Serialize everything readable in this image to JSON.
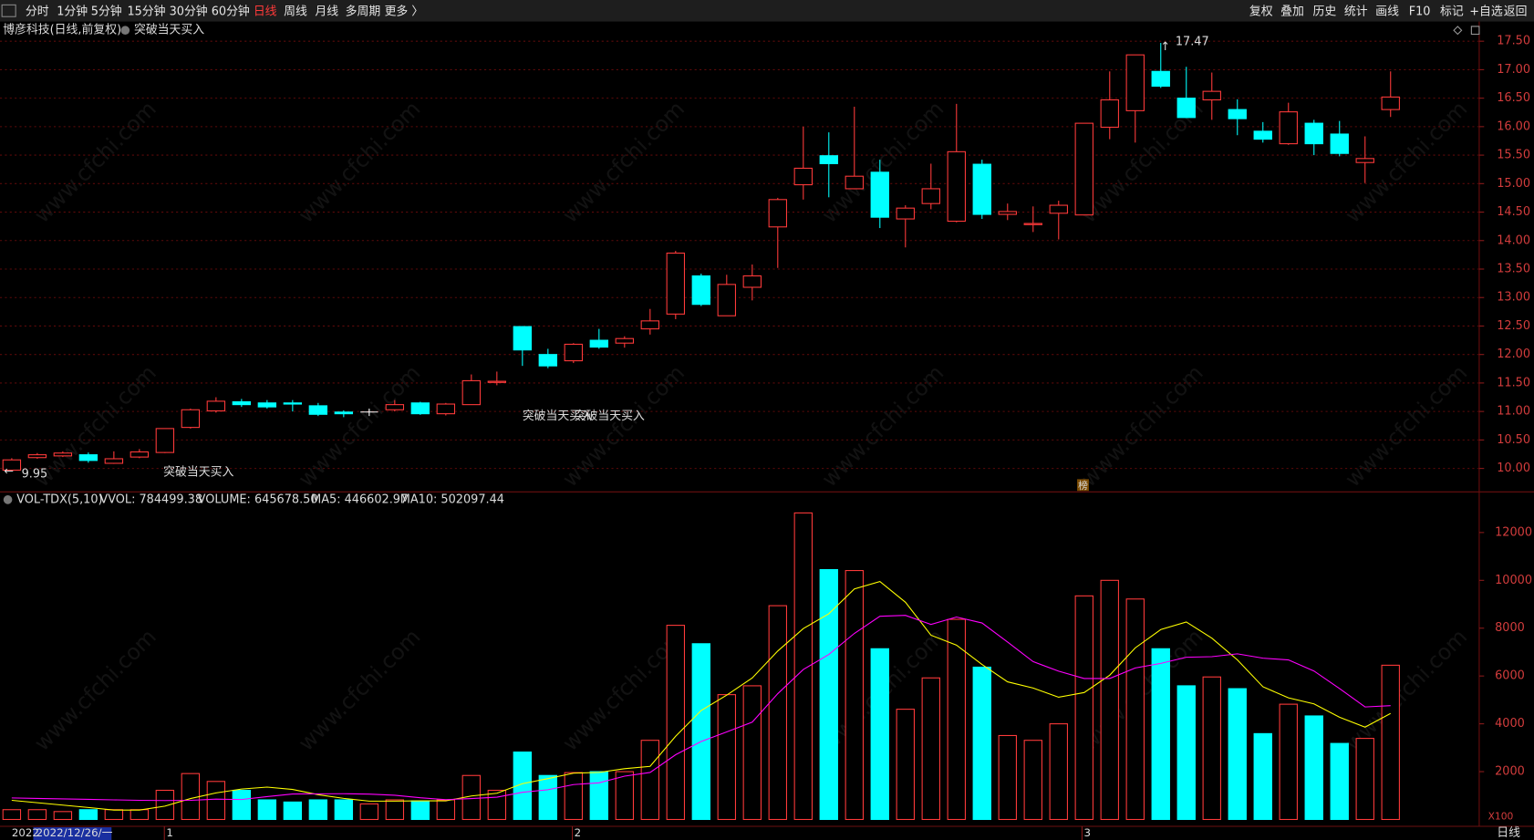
{
  "toolbar": {
    "left": [
      "分时",
      "1分钟",
      "5分钟",
      "15分钟",
      "30分钟",
      "60分钟",
      "日线",
      "周线",
      "月线",
      "多周期",
      "更多 〉"
    ],
    "active": "日线",
    "right": [
      "复权",
      "叠加",
      "历史",
      "统计",
      "画线",
      "F10",
      "标记",
      "+自选",
      "返回"
    ]
  },
  "watermark": "www.cfchi.com",
  "chart_data": [
    {
      "type": "candlestick",
      "title": "博彦科技(日线,前复权)",
      "indicator": "突破当天买入",
      "open": [
        9.97,
        10.19,
        10.22,
        10.24,
        10.09,
        10.2,
        10.28,
        10.72,
        11.01,
        11.17,
        11.15,
        11.15,
        11.1,
        10.99,
        10.99,
        11.03,
        11.15,
        10.96,
        11.12,
        11.51,
        12.49,
        12.0,
        11.89,
        12.25,
        12.2,
        12.45,
        12.71,
        13.38,
        12.68,
        13.18,
        14.24,
        14.98,
        15.49,
        14.91,
        15.2,
        14.38,
        14.65,
        14.34,
        15.34,
        14.46,
        14.28,
        14.48,
        14.45,
        15.99,
        16.28,
        16.97,
        16.5,
        16.47,
        16.3,
        15.92,
        15.7,
        16.06,
        15.87,
        15.37,
        16.3
      ],
      "high": [
        10.18,
        10.27,
        10.3,
        10.28,
        10.3,
        10.34,
        10.7,
        11.05,
        11.25,
        11.22,
        11.2,
        11.2,
        11.15,
        11.02,
        11.05,
        11.2,
        11.17,
        11.15,
        11.65,
        11.7,
        12.5,
        12.1,
        12.2,
        12.45,
        12.32,
        12.8,
        13.82,
        13.42,
        13.4,
        13.58,
        14.75,
        16.0,
        15.9,
        16.35,
        15.42,
        14.62,
        15.35,
        16.4,
        15.42,
        14.65,
        14.6,
        14.7,
        16.06,
        16.97,
        17.26,
        17.47,
        17.05,
        16.95,
        16.48,
        16.08,
        16.42,
        16.12,
        16.1,
        15.83,
        16.97
      ],
      "low": [
        9.95,
        10.17,
        10.2,
        10.1,
        10.08,
        10.18,
        10.27,
        10.7,
        10.98,
        11.08,
        11.05,
        11.0,
        10.92,
        10.9,
        10.92,
        11.0,
        10.94,
        10.93,
        11.12,
        11.46,
        11.8,
        11.76,
        11.85,
        12.1,
        12.12,
        12.35,
        12.62,
        12.85,
        12.68,
        12.95,
        13.52,
        14.72,
        14.76,
        14.9,
        14.22,
        13.88,
        14.55,
        14.32,
        14.38,
        14.36,
        14.15,
        14.02,
        14.45,
        15.78,
        15.72,
        16.68,
        16.15,
        16.12,
        15.85,
        15.72,
        15.68,
        15.5,
        15.48,
        15.01,
        16.17
      ],
      "close": [
        10.15,
        10.24,
        10.27,
        10.14,
        10.17,
        10.29,
        10.7,
        11.03,
        11.18,
        11.12,
        11.08,
        11.13,
        10.95,
        10.96,
        10.99,
        11.12,
        10.96,
        11.13,
        11.54,
        11.53,
        12.08,
        11.8,
        12.18,
        12.13,
        12.28,
        12.59,
        13.78,
        12.88,
        13.23,
        13.38,
        14.72,
        15.27,
        15.35,
        15.13,
        14.41,
        14.57,
        14.91,
        15.56,
        14.46,
        14.51,
        14.3,
        14.62,
        16.06,
        16.47,
        17.26,
        16.71,
        16.16,
        16.62,
        16.14,
        15.78,
        16.26,
        15.7,
        15.53,
        15.44,
        16.52
      ],
      "up_color": "#ff3a3a",
      "down_color": "#00ffff",
      "flat_color": "#ffffff",
      "ylim": [
        9.64,
        17.88
      ],
      "yticks": [
        {
          "value": 10,
          "label": "10.00"
        },
        {
          "value": 10.5,
          "label": "10.50"
        },
        {
          "value": 11,
          "label": "11.00"
        },
        {
          "value": 11.5,
          "label": "11.50"
        },
        {
          "value": 12,
          "label": "12.00"
        },
        {
          "value": 12.5,
          "label": "12.50"
        },
        {
          "value": 13,
          "label": "13.00"
        },
        {
          "value": 13.5,
          "label": "13.50"
        },
        {
          "value": 14,
          "label": "14.00"
        },
        {
          "value": 14.5,
          "label": "14.50"
        },
        {
          "value": 15,
          "label": "15.00"
        },
        {
          "value": 15.5,
          "label": "15.50"
        },
        {
          "value": 16,
          "label": "16.00"
        },
        {
          "value": 16.5,
          "label": "16.50"
        },
        {
          "value": 17,
          "label": "17.00"
        },
        {
          "value": 17.5,
          "label": "17.50"
        }
      ],
      "grid": true,
      "annotations": [
        "突破当天买入",
        "突破当天买入",
        "突破当天买入"
      ],
      "badge": "榜"
    },
    {
      "type": "volume",
      "title": "VOL-TDX(5,10)",
      "legend": [
        {
          "text": "VVOL: 784499.38",
          "color": "#e6e6e6"
        },
        {
          "text": "VOLUME: 645678.50",
          "color": "#ffff00"
        }
      ],
      "values": [
        410,
        410,
        330,
        410,
        410,
        410,
        1220,
        1920,
        1590,
        1220,
        820,
        730,
        820,
        820,
        650,
        820,
        780,
        820,
        1840,
        1220,
        2820,
        1840,
        1960,
        2000,
        2000,
        3310,
        8120,
        7350,
        5220,
        5590,
        8940,
        12820,
        10450,
        10410,
        7140,
        4610,
        5920,
        8370,
        6370,
        3510,
        3310,
        4000,
        9350,
        10000,
        9220,
        7140,
        5590,
        5960,
        5470,
        3590,
        4820,
        4330,
        3180,
        3390,
        6450
      ],
      "series": [
        {
          "name": "MA5: 446602.97",
          "color": "#ffff00",
          "values": [
            800,
            700,
            600,
            500,
            394,
            394,
            556,
            874,
            1110,
            1272,
            1354,
            1256,
            1036,
            882,
            768,
            768,
            778,
            778,
            982,
            1096,
            1496,
            1708,
            1936,
            1968,
            2124,
            2222,
            3478,
            4556,
            5200,
            5918,
            7044,
            7984,
            8604,
            9642,
            9952,
            9086,
            7706,
            7290,
            6482,
            5756,
            5496,
            5112,
            5308,
            6034,
            7176,
            7942,
            8260,
            7582,
            6676,
            5550,
            5086,
            4834,
            4278,
            3862,
            4434
          ]
        },
        {
          "name": "MA10: 502097.44",
          "color": "#ff00ff",
          "values": [
            900,
            880,
            860,
            840,
            820,
            800,
            790,
            800,
            850,
            833,
            955,
            1065,
            1073,
            1077,
            1061,
            1012,
            907,
            830,
            875,
            932,
            1137,
            1243,
            1459,
            1532,
            1810,
            1965,
            2707,
            3262,
            3662,
            4070,
            5261,
            6270,
            6902,
            7780,
            8498,
            8535,
            8155,
            8466,
            8217,
            7421,
            6601,
            6201,
            5895,
            5895,
            6336,
            6527,
            6784,
            6808,
            6926,
            6746,
            6673,
            6208,
            5477,
            4706,
            4760
          ]
        }
      ],
      "ylim": [
        0,
        13700
      ],
      "yticks": [
        2000,
        4000,
        6000,
        8000,
        10000,
        12000
      ],
      "unit": "X100",
      "xlabels": [
        "2022",
        "2022/12/26/一",
        "1",
        "2",
        "3"
      ],
      "period": "日线"
    }
  ]
}
